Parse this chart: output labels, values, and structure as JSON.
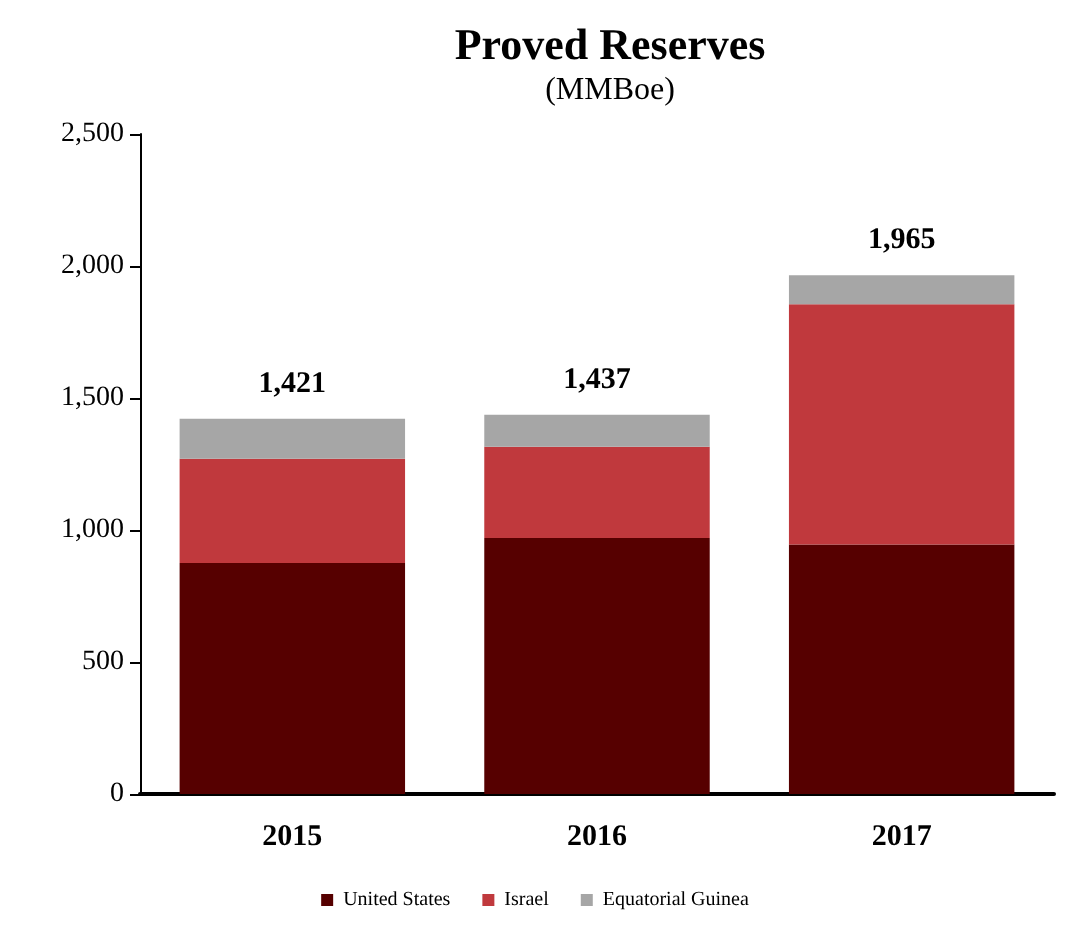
{
  "chart_data": {
    "type": "bar",
    "title": "Proved Reserves",
    "subtitle": "(MMBoe)",
    "categories": [
      "2015",
      "2016",
      "2017"
    ],
    "stacked": true,
    "series": [
      {
        "name": "United States",
        "color": "#560000",
        "values": [
          875,
          970,
          945
        ]
      },
      {
        "name": "Israel",
        "color": "#c0393d",
        "values": [
          395,
          345,
          910
        ]
      },
      {
        "name": "Equatorial Guinea",
        "color": "#a6a6a6",
        "values": [
          151,
          122,
          110
        ]
      }
    ],
    "totals": [
      "1,421",
      "1,437",
      "1,965"
    ],
    "ylim": [
      0,
      2500
    ],
    "yticks": [
      {
        "value": 0,
        "label": "0"
      },
      {
        "value": 500,
        "label": "500"
      },
      {
        "value": 1000,
        "label": "1,000"
      },
      {
        "value": 1500,
        "label": "1,500"
      },
      {
        "value": 2000,
        "label": "2,000"
      },
      {
        "value": 2500,
        "label": "2,500"
      }
    ],
    "grid": false,
    "legend": "bottom"
  }
}
